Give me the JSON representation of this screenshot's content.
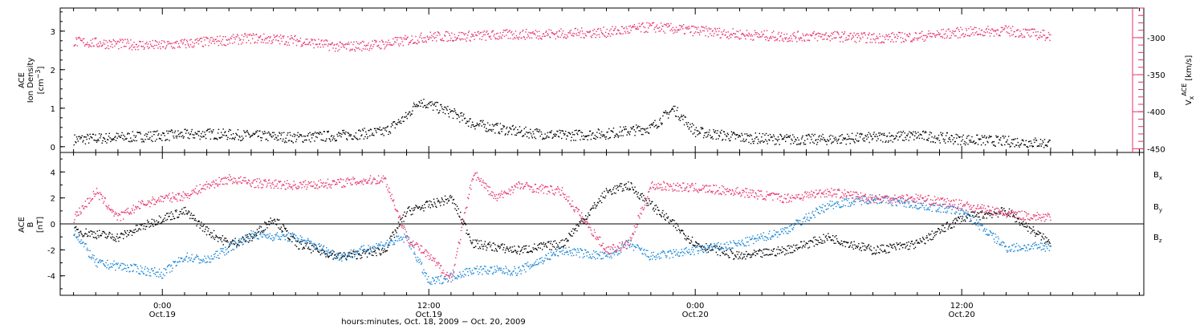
{
  "colors": {
    "black": "#000000",
    "pink": "#e8336a",
    "blue": "#1a86d6"
  },
  "chart_data": [
    {
      "type": "scatter",
      "panel": "top",
      "ylabel_left_lines": [
        "ACE",
        "Ion Density"
      ],
      "ylabel_left_unit_prefix": "[cm",
      "ylabel_left_unit_sup": "−3",
      "ylabel_left_unit_suffix": "]",
      "ylabel_right_prefix": "V",
      "ylabel_right_sub": "x",
      "ylabel_right_sup": "ACE",
      "ylabel_right_unit": "[km/s]",
      "ylim_left": [
        -0.15,
        3.6
      ],
      "ylim_right": [
        -455,
        -260
      ],
      "yticks_left": [
        "0",
        "1",
        "2",
        "3"
      ],
      "yticks_right": [
        "-300",
        "-350",
        "-400",
        "-450"
      ],
      "series": [
        {
          "color": "#000000",
          "axis": "left",
          "x": [
            -4,
            -2,
            0,
            2,
            4,
            6,
            8,
            10,
            11,
            11.5,
            12,
            12.5,
            13,
            14,
            16,
            18,
            20,
            22,
            23,
            24,
            26,
            28,
            30,
            32,
            34,
            36,
            38,
            40
          ],
          "y": [
            0.2,
            0.25,
            0.3,
            0.35,
            0.3,
            0.25,
            0.3,
            0.4,
            0.8,
            1.2,
            1.1,
            1.0,
            0.9,
            0.6,
            0.4,
            0.3,
            0.35,
            0.5,
            1.0,
            0.4,
            0.25,
            0.2,
            0.2,
            0.25,
            0.3,
            0.2,
            0.15,
            0.1
          ]
        },
        {
          "color": "#e8336a",
          "axis": "right",
          "x": [
            -4,
            -2,
            0,
            2,
            4,
            6,
            8,
            10,
            12,
            14,
            16,
            18,
            20,
            22,
            24,
            26,
            28,
            30,
            32,
            34,
            36,
            38,
            40
          ],
          "y": [
            -305,
            -308,
            -310,
            -305,
            -300,
            -303,
            -312,
            -308,
            -298,
            -297,
            -295,
            -294,
            -292,
            -285,
            -290,
            -295,
            -298,
            -297,
            -300,
            -298,
            -292,
            -290,
            -297
          ]
        }
      ]
    },
    {
      "type": "scatter",
      "panel": "bottom",
      "ylabel_lines": [
        "ACE"
      ],
      "ylabel_b": "B",
      "ylabel_unit": "[nT]",
      "ylim": [
        -5.5,
        5.5
      ],
      "yticks": [
        "4",
        "2",
        "0",
        "-2",
        "-4"
      ],
      "legend": [
        {
          "label": "B",
          "sub": "x",
          "color": "#000000"
        },
        {
          "label": "B",
          "sub": "y",
          "color": "#1a86d6"
        },
        {
          "label": "B",
          "sub": "z",
          "color": "#e8336a"
        }
      ],
      "series": [
        {
          "color": "#000000",
          "x": [
            -4,
            -2,
            0,
            1,
            2,
            3,
            4,
            5,
            6,
            8,
            10,
            11,
            12,
            13,
            14,
            16,
            18,
            20,
            21,
            22,
            24,
            26,
            28,
            30,
            32,
            34,
            36,
            38,
            40
          ],
          "y": [
            -0.5,
            -1.0,
            0.5,
            1.0,
            -0.5,
            -1.5,
            -1.0,
            0.5,
            -1.5,
            -2.5,
            -2.0,
            1.0,
            1.5,
            2.0,
            -1.5,
            -2.0,
            -1.5,
            2.5,
            3.0,
            1.5,
            -1.5,
            -2.5,
            -2.0,
            -1.0,
            -2.0,
            -1.5,
            0.5,
            1.0,
            -1.5
          ]
        },
        {
          "color": "#1a86d6",
          "x": [
            -4,
            -3,
            -2,
            0,
            1,
            2,
            4,
            6,
            8,
            10,
            11,
            12,
            13,
            14,
            16,
            18,
            20,
            21,
            22,
            24,
            26,
            28,
            30,
            32,
            34,
            36,
            38,
            40
          ],
          "y": [
            -0.5,
            -3.0,
            -3.2,
            -3.8,
            -2.5,
            -2.8,
            -0.8,
            -1.0,
            -2.5,
            -1.5,
            -1.0,
            -4.5,
            -4.0,
            -3.5,
            -3.6,
            -2.0,
            -2.5,
            -1.5,
            -2.5,
            -2.0,
            -1.5,
            -0.5,
            1.5,
            2.0,
            1.5,
            1.0,
            -1.8,
            -1.7
          ]
        },
        {
          "color": "#e8336a",
          "x": [
            -4,
            -3,
            -2,
            -1,
            0,
            1,
            2,
            3,
            4,
            6,
            8,
            10,
            11,
            12,
            13,
            14,
            15,
            16,
            18,
            20,
            21,
            22,
            24,
            26,
            28,
            30,
            32,
            34,
            36,
            38,
            40
          ],
          "y": [
            0.5,
            2.5,
            0.5,
            1.5,
            2.0,
            2.2,
            3.0,
            3.5,
            3.2,
            3.0,
            3.2,
            3.5,
            -1.0,
            -2.5,
            -4.2,
            4.0,
            2.0,
            3.0,
            2.5,
            -2.0,
            -1.5,
            3.0,
            2.8,
            2.5,
            2.0,
            2.5,
            2.0,
            2.0,
            1.5,
            0.8,
            0.5
          ]
        }
      ]
    }
  ],
  "x_axis": {
    "start": -4.6,
    "end": 44.2,
    "ticks": [
      {
        "time": "0:00",
        "date": "Oct.19",
        "x": 0
      },
      {
        "time": "12:00",
        "date": "Oct.19",
        "x": 12
      },
      {
        "time": "0:00",
        "date": "Oct.20",
        "x": 24
      },
      {
        "time": "12:00",
        "date": "Oct.20",
        "x": 36
      }
    ],
    "title": "hours:minutes, Oct. 18, 2009 − Oct. 20, 2009"
  }
}
